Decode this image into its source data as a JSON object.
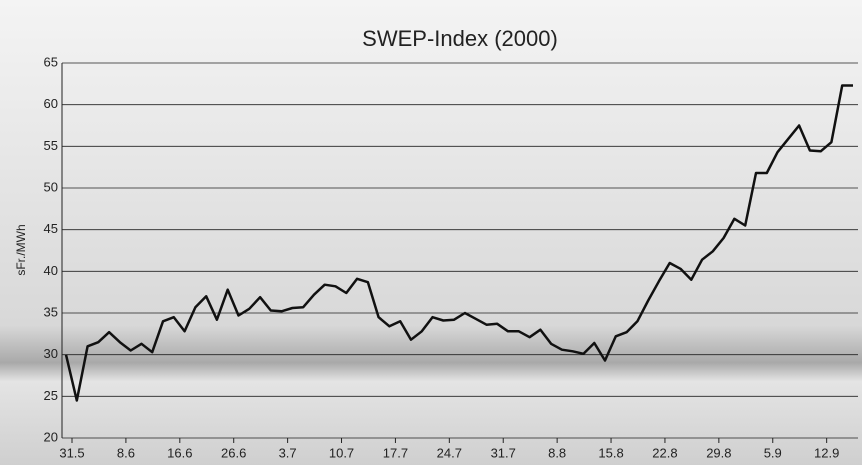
{
  "chart_data": {
    "type": "line",
    "title": "SWEP-Index (2000)",
    "y_label": "sFr./MWh",
    "categories": [
      "31.5",
      null,
      null,
      null,
      null,
      "8.6",
      null,
      null,
      null,
      null,
      "16.6",
      null,
      null,
      null,
      null,
      "26.6",
      null,
      null,
      null,
      null,
      "3.7",
      null,
      null,
      null,
      null,
      "10.7",
      null,
      null,
      null,
      null,
      "17.7",
      null,
      null,
      null,
      null,
      "24.7",
      null,
      null,
      null,
      null,
      "31.7",
      null,
      null,
      null,
      null,
      "8.8",
      null,
      null,
      null,
      null,
      "15.8",
      null,
      null,
      null,
      null,
      "22.8",
      null,
      null,
      null,
      null,
      "29.8",
      null,
      null,
      null,
      null,
      "5.9",
      null,
      null,
      null,
      null,
      "12.9",
      null,
      null,
      null
    ],
    "values": [
      30,
      24.5,
      31,
      31.5,
      32.7,
      31.5,
      30.5,
      31.3,
      30.3,
      34,
      34.5,
      32.8,
      35.7,
      37,
      34.2,
      37.8,
      34.7,
      35.5,
      36.9,
      35.3,
      35.2,
      35.6,
      35.7,
      37.2,
      38.4,
      38.2,
      37.4,
      39.1,
      38.7,
      34.5,
      33.4,
      34,
      31.8,
      32.8,
      34.5,
      34.1,
      34.2,
      35,
      34.3,
      33.6,
      33.7,
      32.8,
      32.8,
      32.1,
      33,
      31.3,
      30.6,
      30.4,
      30.1,
      31.4,
      29.3,
      32.2,
      32.7,
      34,
      36.5,
      38.8,
      41,
      40.3,
      39,
      41.4,
      42.4,
      44,
      46.3,
      45.5,
      51.8,
      51.8,
      54.3,
      55.9,
      57.5,
      54.5,
      54.4,
      55.5,
      62.3,
      62.3
    ],
    "color": "#111111",
    "ylim": [
      20,
      65
    ],
    "yticks": [
      20,
      25,
      30,
      35,
      40,
      45,
      50,
      55,
      60,
      65
    ],
    "grid": true
  }
}
